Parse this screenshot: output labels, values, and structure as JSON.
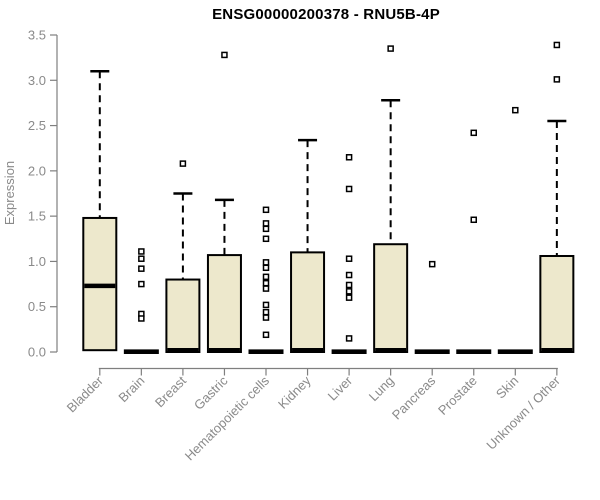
{
  "page": {
    "background": "#FFFFFF"
  },
  "chart_data": {
    "type": "boxplot",
    "title": "ENSG00000200378 - RNU5B-4P",
    "ylabel": "Expression",
    "xlabel": "",
    "ylim": [
      0,
      3.5
    ],
    "grid": false,
    "legend": "none",
    "yticks": [
      {
        "value": 0.0,
        "label": "0.0"
      },
      {
        "value": 0.5,
        "label": "0.5"
      },
      {
        "value": 1.0,
        "label": "1.0"
      },
      {
        "value": 1.5,
        "label": "1.5"
      },
      {
        "value": 2.0,
        "label": "2.0"
      },
      {
        "value": 2.5,
        "label": "2.5"
      },
      {
        "value": 3.0,
        "label": "3.0"
      },
      {
        "value": 3.5,
        "label": "3.5"
      }
    ],
    "categories": [
      "Bladder",
      "Brain",
      "Breast",
      "Gastric",
      "Hematopoietic cells",
      "Kidney",
      "Liver",
      "Lung",
      "Pancreas",
      "Prostate",
      "Skin",
      "Unknown / Other"
    ],
    "series": [
      {
        "name": "Bladder",
        "q1": 0.02,
        "median": 0.73,
        "q3": 1.48,
        "whisker_low": 0.02,
        "whisker_high": 3.1,
        "outliers": []
      },
      {
        "name": "Brain",
        "q1": 0.0,
        "median": 0.02,
        "q3": 0.03,
        "whisker_low": 0.0,
        "whisker_high": 0.03,
        "outliers": [
          1.11,
          1.03,
          0.92,
          0.75,
          0.42,
          0.37
        ]
      },
      {
        "name": "Breast",
        "q1": 0.0,
        "median": 0.02,
        "q3": 0.8,
        "whisker_low": 0.0,
        "whisker_high": 1.75,
        "outliers": [
          2.08
        ]
      },
      {
        "name": "Gastric",
        "q1": 0.0,
        "median": 0.02,
        "q3": 1.07,
        "whisker_low": 0.0,
        "whisker_high": 1.68,
        "outliers": [
          3.28
        ]
      },
      {
        "name": "Hematopoietic cells",
        "q1": 0.0,
        "median": 0.02,
        "q3": 0.03,
        "whisker_low": 0.0,
        "whisker_high": 0.03,
        "outliers": [
          1.57,
          1.42,
          1.36,
          1.25,
          0.99,
          0.93,
          0.83,
          0.76,
          0.7,
          0.52,
          0.44,
          0.38,
          0.19
        ]
      },
      {
        "name": "Kidney",
        "q1": 0.0,
        "median": 0.02,
        "q3": 1.1,
        "whisker_low": 0.0,
        "whisker_high": 2.34,
        "outliers": []
      },
      {
        "name": "Liver",
        "q1": 0.0,
        "median": 0.02,
        "q3": 0.03,
        "whisker_low": 0.0,
        "whisker_high": 0.03,
        "outliers": [
          2.15,
          1.8,
          1.03,
          0.85,
          0.74,
          0.67,
          0.6,
          0.15
        ]
      },
      {
        "name": "Lung",
        "q1": 0.0,
        "median": 0.02,
        "q3": 1.19,
        "whisker_low": 0.0,
        "whisker_high": 2.78,
        "outliers": [
          3.35
        ]
      },
      {
        "name": "Pancreas",
        "q1": 0.0,
        "median": 0.02,
        "q3": 0.03,
        "whisker_low": 0.0,
        "whisker_high": 0.03,
        "outliers": [
          0.97
        ]
      },
      {
        "name": "Prostate",
        "q1": 0.0,
        "median": 0.02,
        "q3": 0.03,
        "whisker_low": 0.0,
        "whisker_high": 0.03,
        "outliers": [
          2.42,
          1.46
        ]
      },
      {
        "name": "Skin",
        "q1": 0.0,
        "median": 0.02,
        "q3": 0.03,
        "whisker_low": 0.0,
        "whisker_high": 0.03,
        "outliers": [
          2.67
        ]
      },
      {
        "name": "Unknown / Other",
        "q1": 0.0,
        "median": 0.02,
        "q3": 1.06,
        "whisker_low": 0.0,
        "whisker_high": 2.55,
        "outliers": [
          3.39,
          3.01
        ]
      }
    ],
    "colors": {
      "box_fill": "#EDE8CC",
      "box_line": "#000000",
      "flat_bar": "#000000",
      "outlier_fill": "#FFFFFF",
      "axis_line": "#7F7F7F",
      "tick_label": "#8A8A8A",
      "title": "#000000"
    }
  }
}
